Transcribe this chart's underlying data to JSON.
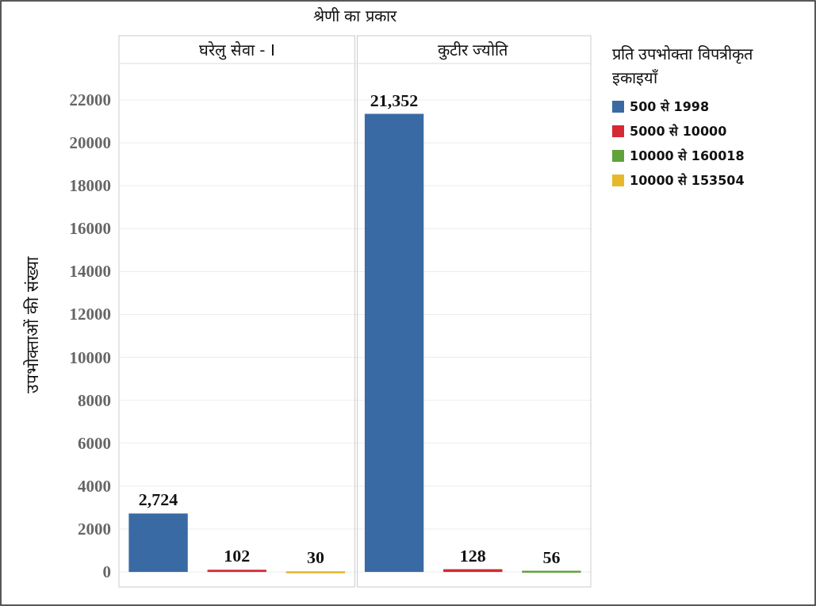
{
  "chart_data": {
    "type": "bar",
    "xlabel": "श्रेणी का प्रकार",
    "ylabel": "उपभोक्ताओं की संख्या",
    "legend_title": "प्रति उपभोक्ता विपत्रीकृत इकाइयाँ",
    "legend": "right",
    "categories": [
      "घरेलु सेवा - I",
      "कुटीर ज्योति"
    ],
    "ylim": [
      -700,
      23700
    ],
    "yticks": [
      0,
      2000,
      4000,
      6000,
      8000,
      10000,
      12000,
      14000,
      16000,
      18000,
      20000,
      22000
    ],
    "grid": "y",
    "series": [
      {
        "name": "500 से 1998",
        "color": "#3a6aa4",
        "values": [
          2724,
          21352
        ],
        "value_labels": [
          "2,724",
          "21,352"
        ]
      },
      {
        "name": "5000 से 10000",
        "color": "#d42a33",
        "values": [
          102,
          128
        ],
        "value_labels": [
          "102",
          "128"
        ]
      },
      {
        "name": "10000 से 160018",
        "color": "#5fa33a",
        "values": [
          null,
          56
        ],
        "value_labels": [
          null,
          "56"
        ]
      },
      {
        "name": "10000 से 153504",
        "color": "#e6b82a",
        "values": [
          30,
          null
        ],
        "value_labels": [
          "30",
          null
        ]
      }
    ]
  }
}
